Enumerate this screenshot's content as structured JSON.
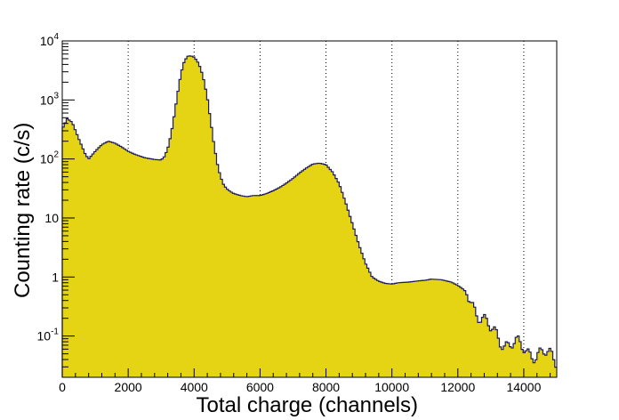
{
  "chart_data": {
    "type": "area",
    "title": "",
    "xlabel": "Total charge (channels)",
    "ylabel": "Counting rate (c/s)",
    "xlim": [
      0,
      15000
    ],
    "ylim": [
      0.02,
      10000
    ],
    "yscale": "log",
    "grid": "vertical dotted lines at major x ticks",
    "fill_color": "#e5d414",
    "line_color": "#1a1a5e",
    "x_ticks": [
      0,
      2000,
      4000,
      6000,
      8000,
      10000,
      12000,
      14000
    ],
    "x_tick_labels": [
      "0",
      "2000",
      "4000",
      "6000",
      "8000",
      "10000",
      "12000",
      "14000"
    ],
    "y_ticks": [
      {
        "value": 0.1,
        "base": "10",
        "exp": "-1"
      },
      {
        "value": 1,
        "base": "1",
        "exp": ""
      },
      {
        "value": 10,
        "base": "10",
        "exp": ""
      },
      {
        "value": 100,
        "base": "10",
        "exp": "2"
      },
      {
        "value": 1000,
        "base": "10",
        "exp": "3"
      },
      {
        "value": 10000,
        "base": "10",
        "exp": "4"
      }
    ],
    "series": [
      {
        "x": [
          0,
          150,
          300,
          500,
          700,
          800,
          1000,
          1200,
          1400,
          1600,
          1800,
          2000,
          2200,
          2500,
          2800,
          3000,
          3100,
          3200,
          3300,
          3400,
          3500,
          3600,
          3700,
          3800,
          3900,
          4000,
          4100,
          4200,
          4300,
          4400,
          4500,
          4600,
          4700,
          4800,
          4900,
          5000,
          5100,
          5200,
          5300,
          5400,
          5600,
          5800,
          6000,
          6200,
          6400,
          6600,
          6800,
          7000,
          7200,
          7400,
          7600,
          7800,
          8000,
          8200,
          8400,
          8600,
          8800,
          9000,
          9200,
          9400,
          9600,
          9800,
          10000,
          10200,
          10500,
          10800,
          11000,
          11200,
          11500,
          11800,
          12000,
          12200,
          12400,
          12600,
          12800,
          13000,
          13200,
          13400,
          13600,
          13800,
          14000,
          14200,
          14400,
          14600,
          14800,
          15000
        ],
        "y": [
          320,
          480,
          420,
          220,
          120,
          100,
          135,
          175,
          200,
          185,
          160,
          135,
          120,
          105,
          98,
          96,
          110,
          150,
          260,
          560,
          1300,
          2800,
          4500,
          5500,
          5600,
          5300,
          4500,
          3400,
          2100,
          1100,
          450,
          180,
          85,
          50,
          36,
          31,
          28,
          26,
          25,
          24,
          23,
          24,
          24,
          26,
          29,
          33,
          39,
          47,
          58,
          70,
          82,
          85,
          80,
          60,
          38,
          18,
          8,
          3.5,
          1.7,
          1.0,
          0.85,
          0.78,
          0.76,
          0.8,
          0.82,
          0.86,
          0.88,
          0.92,
          0.9,
          0.82,
          0.72,
          0.6,
          0.4,
          0.26,
          0.18,
          0.12,
          0.1,
          0.08,
          0.075,
          0.068,
          0.06,
          0.055,
          0.05,
          0.048,
          0.045,
          0.04
        ]
      }
    ]
  }
}
